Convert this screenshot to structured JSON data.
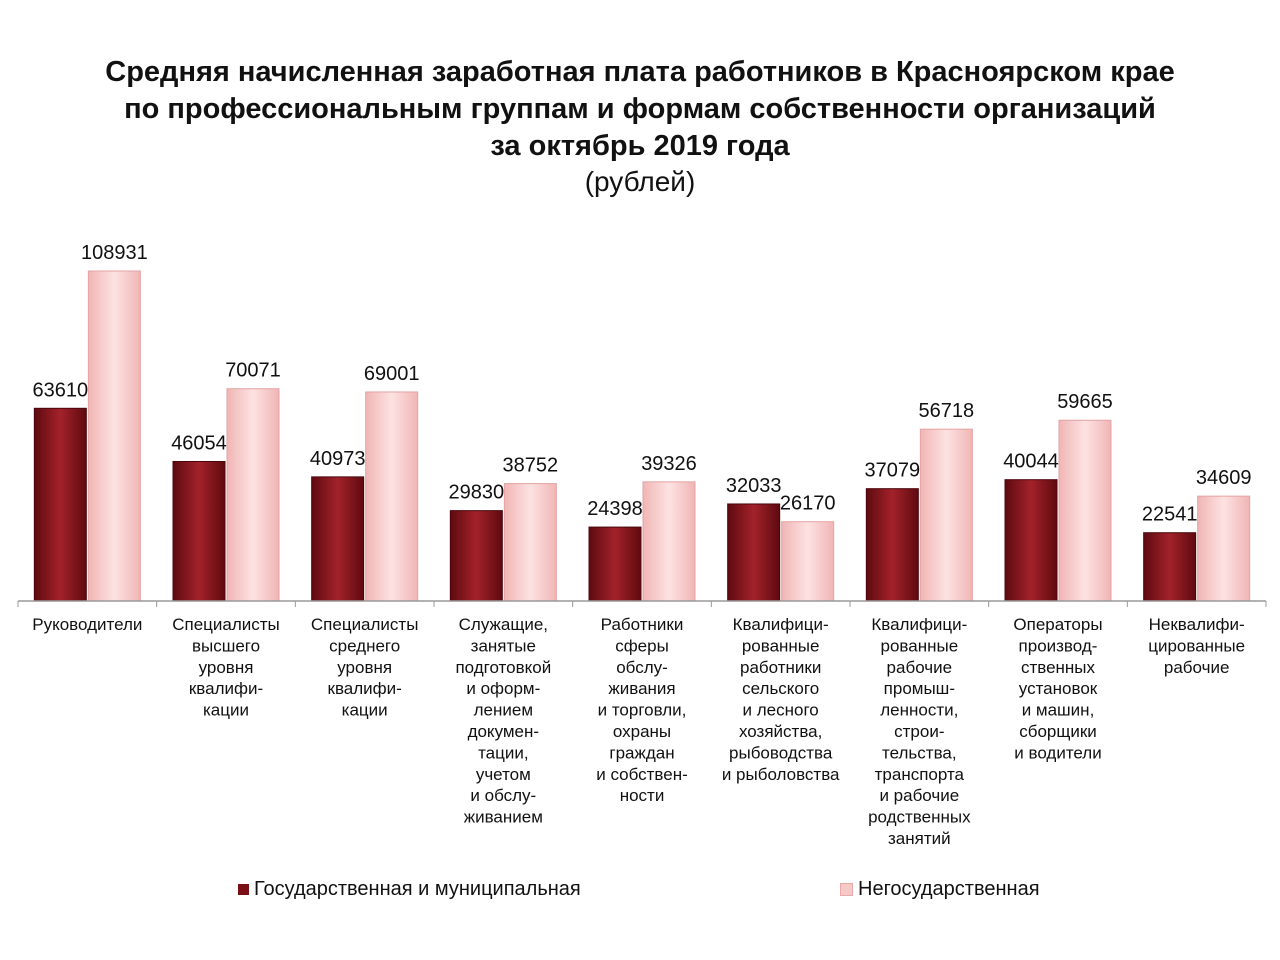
{
  "title": {
    "line1": "Средняя начисленная заработная плата работников в Красноярском крае",
    "line2": "по профессиональным группам и формам собственности организаций",
    "line3": "за октябрь 2019 года",
    "subtitle": "(рублей)"
  },
  "colors": {
    "state": "#7a1016",
    "state_light": "#b0262c",
    "private": "#f6c9c9",
    "private_edge": "#e8a9a9",
    "axis": "#999999"
  },
  "legend": [
    {
      "name": "Государственная и муниципальная"
    },
    {
      "name": "Негосударственная"
    }
  ],
  "chart_data": {
    "type": "bar",
    "title": "Средняя начисленная заработная плата работников в Красноярском крае по профессиональным группам и формам собственности организаций за октябрь 2019 года",
    "ylabel": "рублей",
    "ylim": [
      0,
      115000
    ],
    "categories": [
      [
        "Руководители"
      ],
      [
        "Специалисты",
        "высшего",
        "уровня",
        "квалифи-",
        "кации"
      ],
      [
        "Специалисты",
        "среднего",
        "уровня",
        "квалифи-",
        "кации"
      ],
      [
        "Служащие,",
        "занятые",
        "подготовкой",
        "и оформ-",
        "лением",
        "докумен-",
        "тации,",
        "учетом",
        "и обслу-",
        "живанием"
      ],
      [
        "Работники",
        "сферы",
        "обслу-",
        "живания",
        "и торговли,",
        "охраны",
        "граждан",
        "и собствен-",
        "ности"
      ],
      [
        "Квалифици-",
        "рованные",
        "работники",
        "сельского",
        "и лесного",
        "хозяйства,",
        "рыбоводства",
        "и рыболовства"
      ],
      [
        "Квалифици-",
        "рованные",
        "рабочие",
        "промыш-",
        "ленности,",
        "строи-",
        "тельства,",
        "транспорта",
        "и рабочие",
        "родственных",
        "занятий"
      ],
      [
        "Операторы",
        "производ-",
        "ственных",
        "установок",
        "и машин,",
        "сборщики",
        "и водители"
      ],
      [
        "Неквалифи-",
        "цированные",
        "рабочие"
      ]
    ],
    "series": [
      {
        "name": "Государственная и муниципальная",
        "values": [
          63610,
          46054,
          40973,
          29830,
          24398,
          32033,
          37079,
          40044,
          22541
        ]
      },
      {
        "name": "Негосударственная",
        "values": [
          108931,
          70071,
          69001,
          38752,
          39326,
          26170,
          56718,
          59665,
          34609
        ]
      }
    ]
  }
}
